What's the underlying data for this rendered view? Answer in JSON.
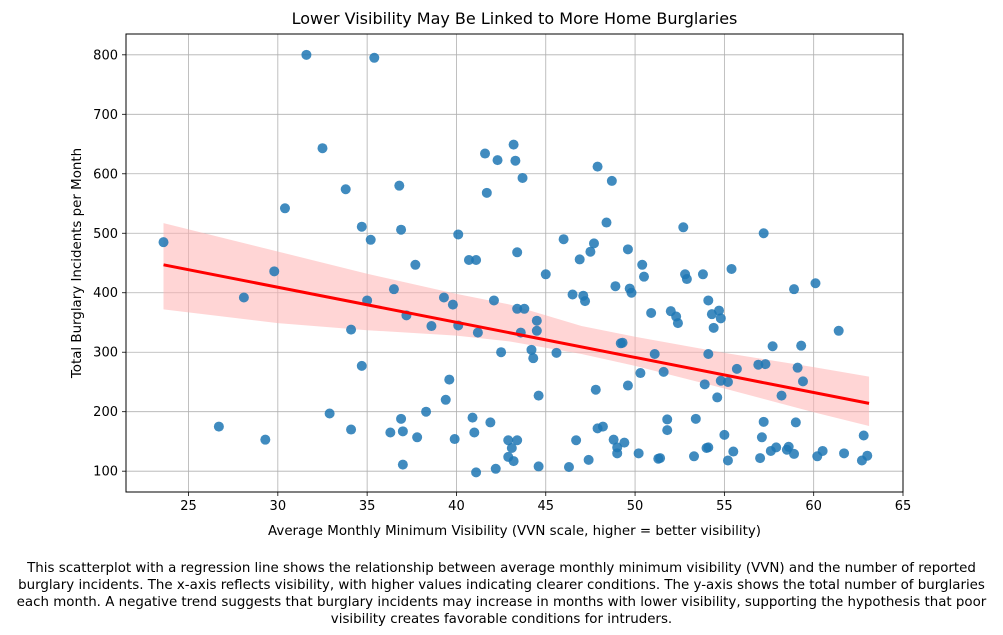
{
  "chart_data": {
    "type": "scatter",
    "title": "Lower Visibility May Be Linked to More Home Burglaries",
    "xlabel": "Average Monthly Minimum Visibility (VVN scale, higher = better visibility)",
    "ylabel": "Total Burglary Incidents per Month",
    "xlim": [
      21.5,
      65
    ],
    "ylim": [
      65,
      835
    ],
    "x_ticks": [
      25,
      30,
      35,
      40,
      45,
      50,
      55,
      60,
      65
    ],
    "y_ticks": [
      100,
      200,
      300,
      400,
      500,
      600,
      700,
      800
    ],
    "grid": true,
    "point_color": "#1f77b4",
    "regression": {
      "x": [
        23.6,
        63.1
      ],
      "y": [
        447,
        214
      ],
      "color": "#ff0000",
      "band_color": "#ffb3b3",
      "band_upper": [
        [
          23.6,
          517
        ],
        [
          35,
          432
        ],
        [
          40,
          398
        ],
        [
          43,
          380
        ],
        [
          47,
          344
        ],
        [
          50,
          326
        ],
        [
          55,
          299
        ],
        [
          60,
          275
        ],
        [
          63.1,
          259
        ]
      ],
      "band_lower": [
        [
          23.6,
          372
        ],
        [
          30,
          349
        ],
        [
          35,
          337
        ],
        [
          40,
          328
        ],
        [
          43,
          318
        ],
        [
          47,
          297
        ],
        [
          50,
          277
        ],
        [
          55,
          239
        ],
        [
          60,
          199
        ],
        [
          63.1,
          176
        ]
      ]
    },
    "points": [
      [
        23.6,
        485
      ],
      [
        26.7,
        175
      ],
      [
        28.1,
        392
      ],
      [
        29.3,
        153
      ],
      [
        29.8,
        436
      ],
      [
        30.4,
        542
      ],
      [
        31.6,
        800
      ],
      [
        32.5,
        643
      ],
      [
        32.9,
        197
      ],
      [
        33.8,
        574
      ],
      [
        34.1,
        338
      ],
      [
        34.1,
        170
      ],
      [
        34.7,
        511
      ],
      [
        34.7,
        277
      ],
      [
        35.0,
        387
      ],
      [
        35.2,
        489
      ],
      [
        35.4,
        795
      ],
      [
        36.3,
        165
      ],
      [
        36.5,
        406
      ],
      [
        36.8,
        580
      ],
      [
        36.9,
        506
      ],
      [
        36.9,
        188
      ],
      [
        37.0,
        111
      ],
      [
        37.0,
        167
      ],
      [
        37.2,
        362
      ],
      [
        37.7,
        447
      ],
      [
        37.8,
        157
      ],
      [
        38.3,
        200
      ],
      [
        38.6,
        344
      ],
      [
        39.3,
        392
      ],
      [
        39.4,
        220
      ],
      [
        39.6,
        254
      ],
      [
        39.8,
        380
      ],
      [
        39.9,
        154
      ],
      [
        40.1,
        498
      ],
      [
        40.1,
        345
      ],
      [
        40.7,
        455
      ],
      [
        40.9,
        190
      ],
      [
        41.0,
        165
      ],
      [
        41.1,
        98
      ],
      [
        41.1,
        455
      ],
      [
        41.2,
        333
      ],
      [
        41.6,
        634
      ],
      [
        41.7,
        568
      ],
      [
        41.9,
        182
      ],
      [
        42.1,
        387
      ],
      [
        42.2,
        104
      ],
      [
        42.3,
        623
      ],
      [
        42.5,
        300
      ],
      [
        42.9,
        152
      ],
      [
        42.9,
        124
      ],
      [
        43.1,
        139
      ],
      [
        43.2,
        649
      ],
      [
        43.2,
        117
      ],
      [
        43.3,
        622
      ],
      [
        43.4,
        152
      ],
      [
        43.4,
        468
      ],
      [
        43.4,
        373
      ],
      [
        43.6,
        333
      ],
      [
        43.7,
        593
      ],
      [
        43.8,
        373
      ],
      [
        44.2,
        304
      ],
      [
        44.3,
        290
      ],
      [
        44.5,
        353
      ],
      [
        44.5,
        336
      ],
      [
        44.6,
        227
      ],
      [
        44.6,
        108
      ],
      [
        45.0,
        431
      ],
      [
        45.6,
        299
      ],
      [
        46.0,
        490
      ],
      [
        46.3,
        107
      ],
      [
        46.5,
        397
      ],
      [
        46.7,
        152
      ],
      [
        46.9,
        456
      ],
      [
        47.1,
        395
      ],
      [
        47.2,
        386
      ],
      [
        47.4,
        119
      ],
      [
        47.5,
        469
      ],
      [
        47.7,
        483
      ],
      [
        47.8,
        237
      ],
      [
        47.9,
        172
      ],
      [
        47.9,
        612
      ],
      [
        48.2,
        175
      ],
      [
        48.4,
        518
      ],
      [
        48.7,
        588
      ],
      [
        48.8,
        153
      ],
      [
        48.9,
        411
      ],
      [
        49.0,
        140
      ],
      [
        49.0,
        130
      ],
      [
        49.2,
        315
      ],
      [
        49.3,
        316
      ],
      [
        49.4,
        148
      ],
      [
        49.6,
        244
      ],
      [
        49.6,
        473
      ],
      [
        49.7,
        407
      ],
      [
        49.8,
        400
      ],
      [
        50.2,
        130
      ],
      [
        50.3,
        265
      ],
      [
        50.4,
        447
      ],
      [
        50.5,
        427
      ],
      [
        50.9,
        366
      ],
      [
        51.1,
        297
      ],
      [
        51.3,
        121
      ],
      [
        51.4,
        122
      ],
      [
        51.6,
        267
      ],
      [
        51.8,
        169
      ],
      [
        51.8,
        187
      ],
      [
        52.0,
        369
      ],
      [
        52.3,
        360
      ],
      [
        52.4,
        349
      ],
      [
        52.7,
        510
      ],
      [
        52.8,
        431
      ],
      [
        52.9,
        423
      ],
      [
        53.3,
        125
      ],
      [
        53.4,
        188
      ],
      [
        53.8,
        431
      ],
      [
        53.9,
        246
      ],
      [
        54.0,
        139
      ],
      [
        54.1,
        387
      ],
      [
        54.1,
        297
      ],
      [
        54.1,
        140
      ],
      [
        54.3,
        364
      ],
      [
        54.4,
        341
      ],
      [
        54.6,
        224
      ],
      [
        54.7,
        370
      ],
      [
        54.8,
        252
      ],
      [
        54.8,
        357
      ],
      [
        55.0,
        161
      ],
      [
        55.2,
        118
      ],
      [
        55.2,
        250
      ],
      [
        55.4,
        440
      ],
      [
        55.5,
        133
      ],
      [
        55.7,
        272
      ],
      [
        56.9,
        279
      ],
      [
        57.0,
        122
      ],
      [
        57.1,
        157
      ],
      [
        57.2,
        183
      ],
      [
        57.2,
        500
      ],
      [
        57.3,
        280
      ],
      [
        57.6,
        134
      ],
      [
        57.7,
        310
      ],
      [
        57.9,
        140
      ],
      [
        58.2,
        227
      ],
      [
        58.5,
        136
      ],
      [
        58.6,
        141
      ],
      [
        58.9,
        406
      ],
      [
        58.9,
        129
      ],
      [
        59.0,
        182
      ],
      [
        59.1,
        274
      ],
      [
        59.3,
        311
      ],
      [
        59.4,
        251
      ],
      [
        60.1,
        416
      ],
      [
        60.2,
        125
      ],
      [
        60.5,
        134
      ],
      [
        61.4,
        336
      ],
      [
        61.7,
        130
      ],
      [
        62.7,
        118
      ],
      [
        62.8,
        160
      ],
      [
        63.0,
        126
      ]
    ]
  },
  "caption": "This scatterplot with a regression line shows the relationship between average monthly minimum visibility (VVN) and the number of reported burglary incidents. The x-axis reflects visibility, with higher values indicating clearer conditions. The y-axis shows the total number of burglaries each month. A negative trend suggests that burglary incidents may increase in months with lower visibility, supporting the hypothesis that poor visibility creates favorable conditions for intruders."
}
